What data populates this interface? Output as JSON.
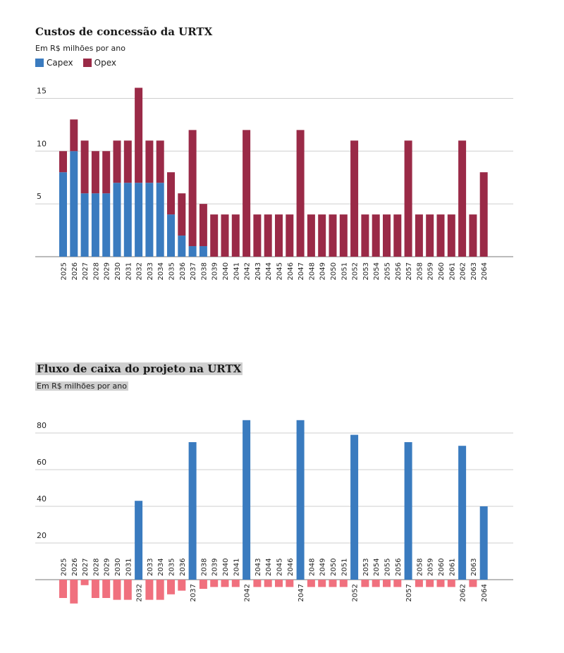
{
  "colors": {
    "capex": "#3a7bbf",
    "opex": "#9a2a47",
    "positive": "#3a7bbf",
    "negative": "#f0707e",
    "grid": "#cfcfcf"
  },
  "chart_data": [
    {
      "type": "bar",
      "stacked": true,
      "title": "Custos de concessão da URTX",
      "subtitle": "Em R$ milhões por ano",
      "categories": [
        "2025",
        "2026",
        "2027",
        "2028",
        "2029",
        "2030",
        "2031",
        "2032",
        "2033",
        "2034",
        "2035",
        "2036",
        "2037",
        "2038",
        "2039",
        "2040",
        "2041",
        "2042",
        "2043",
        "2044",
        "2045",
        "2046",
        "2047",
        "2048",
        "2049",
        "2050",
        "2051",
        "2052",
        "2053",
        "2054",
        "2055",
        "2056",
        "2057",
        "2058",
        "2059",
        "2060",
        "2061",
        "2062",
        "2063",
        "2064"
      ],
      "series": [
        {
          "name": "Capex",
          "values": [
            8,
            10,
            6,
            6,
            6,
            7,
            7,
            7,
            7,
            7,
            4,
            2,
            1,
            1,
            0,
            0,
            0,
            0,
            0,
            0,
            0,
            0,
            0,
            0,
            0,
            0,
            0,
            0,
            0,
            0,
            0,
            0,
            0,
            0,
            0,
            0,
            0,
            0,
            0,
            0
          ]
        },
        {
          "name": "Opex",
          "values": [
            2,
            3,
            5,
            4,
            4,
            4,
            4,
            9,
            4,
            4,
            4,
            4,
            11,
            4,
            4,
            4,
            4,
            12,
            4,
            4,
            4,
            4,
            12,
            4,
            4,
            4,
            4,
            11,
            4,
            4,
            4,
            4,
            11,
            4,
            4,
            4,
            4,
            11,
            4,
            8
          ]
        }
      ],
      "yticks": [
        5,
        10,
        15
      ],
      "ylim": [
        0,
        16.3
      ],
      "grid": true,
      "legend": "top-left"
    },
    {
      "type": "bar",
      "title": "Fluxo de caixa do projeto na URTX",
      "subtitle": "Em R$ milhões por ano",
      "categories": [
        "2025",
        "2026",
        "2027",
        "2028",
        "2029",
        "2030",
        "2031",
        "2032",
        "2033",
        "2034",
        "2035",
        "2036",
        "2037",
        "2038",
        "2039",
        "2040",
        "2041",
        "2042",
        "2043",
        "2044",
        "2045",
        "2046",
        "2047",
        "2048",
        "2049",
        "2050",
        "2051",
        "2052",
        "2053",
        "2054",
        "2055",
        "2056",
        "2057",
        "2058",
        "2059",
        "2060",
        "2061",
        "2062",
        "2063",
        "2064"
      ],
      "series": [
        {
          "name": "",
          "values": [
            -10,
            -13,
            -3,
            -10,
            -10,
            -11,
            -11,
            43,
            -11,
            -11,
            -8,
            -6,
            75,
            -5,
            -4,
            -4,
            -4,
            87,
            -4,
            -4,
            -4,
            -4,
            87,
            -4,
            -4,
            -4,
            -4,
            79,
            -4,
            -4,
            -4,
            -4,
            75,
            -4,
            -4,
            -4,
            -4,
            73,
            -4,
            40
          ]
        }
      ],
      "yticks": [
        20,
        40,
        60,
        80
      ],
      "ylim": [
        -14,
        90
      ],
      "grid": true
    }
  ]
}
